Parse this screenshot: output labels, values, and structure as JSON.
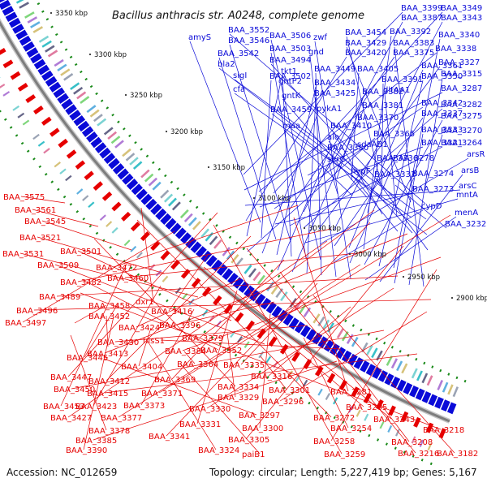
{
  "title": "Bacillus anthracis str. A0248, complete genome",
  "footer": {
    "accession": "Accession: NC_012659",
    "stats": "Topology: circular; Length: 5,227,419 bp; Genes: 5,167"
  },
  "colors": {
    "forward": "#0a0ad8",
    "reverse": "#e60000",
    "backbone": "#7d7d7d",
    "rna": "#1a8a1a"
  },
  "ticks": [
    "3350 kbp",
    "3300 kbp",
    "3250 kbp",
    "3200 kbp",
    "3150 kbp",
    "3100 kbp",
    "3050 kbp",
    "3000 kbp",
    "2950 kbp",
    "2900 kbp"
  ],
  "forward_labels": [
    "BAA_3399",
    "BAA_3349",
    "BAA_3387",
    "BAA_3343",
    "BAA_3392",
    "BAA_3340",
    "BAA_3383",
    "BAA_3338",
    "BAA_3375",
    "BAA_3327",
    "BAA_3361",
    "BAA_3350",
    "BAA_3315",
    "BAA_3287",
    "BAA_3342",
    "BAA_3282",
    "BAA_3337",
    "BAA_3275",
    "BAA_3333",
    "BAA_3270",
    "BAA_3321",
    "BAA_3264",
    "arsR",
    "BAA_3278",
    "arsB",
    "BAA_3274",
    "arsC",
    "BAA_3273",
    "mntA",
    "cypD",
    "menA",
    "BAA_3232",
    "BAA_3552",
    "amyS",
    "BAA_3546",
    "BAA_3506",
    "zwf",
    "BAA_3454",
    "BAA_3429",
    "BAA_3420",
    "BAA_3542",
    "BAA_3503",
    "gnd",
    "bla2",
    "BAA_3494",
    "sigI",
    "BAA_3502",
    "tkt1",
    "BAA_3449",
    "BAA_3405",
    "BAA_3391",
    "cfa",
    "gntP2",
    "BAA_3434",
    "BAA_3425",
    "BAA_3382",
    "gntK",
    "dltAA1",
    "BAA_3459",
    "pykA1",
    "BAA_3381",
    "BAA_3370",
    "maa",
    "BAA_3410",
    "alo",
    "BAA_3365",
    "BAA_3380",
    "sdaAB1",
    "serC",
    "BAA_3336",
    "hypF",
    "BAA_3332"
  ],
  "reverse_labels": [
    "BAA_3575",
    "BAA_3561",
    "BAA_3545",
    "BAA_3521",
    "BAA_3531",
    "BAA_3501",
    "BAA_3509",
    "BAA_3472",
    "BAA_3482",
    "BAA_3460",
    "BAA_3489",
    "BAA_3496",
    "BAA_3458",
    "BAA_3452",
    "dxr1",
    "BAA_3497",
    "BAA_3416",
    "BAA_3424",
    "BAA_3396",
    "BAA_3430",
    "hisS1",
    "BAA_3379",
    "BAA_3413",
    "BAA_3384",
    "BAA_3352",
    "BAA_3445",
    "BAA_3404",
    "BAA_3364",
    "BAA_3447",
    "BAA_3412",
    "BAA_3369",
    "BAA_3335",
    "BAA_3316",
    "BAA_3450",
    "BAA_3415",
    "BAA_3371",
    "BAA_3334",
    "BAA_3453",
    "BAA_3423",
    "BAA_3373",
    "BAA_3329",
    "BAA_3301",
    "BAA_3281",
    "BAA_3427",
    "BAA_3377",
    "BAA_3330",
    "BAA_3296",
    "BAA_3378",
    "BAA_3297",
    "BAA_3272",
    "BAA_3265",
    "BAA_3243",
    "BAA_3331",
    "BAA_3300",
    "BAA_3254",
    "BAA_3385",
    "BAA_3341",
    "BAA_3305",
    "BAA_3258",
    "BAA_3218",
    "BAA_3390",
    "BAA_3324",
    "paiB1",
    "BAA_3259",
    "BAA_3216",
    "BAA_3208",
    "BAA_3182"
  ]
}
